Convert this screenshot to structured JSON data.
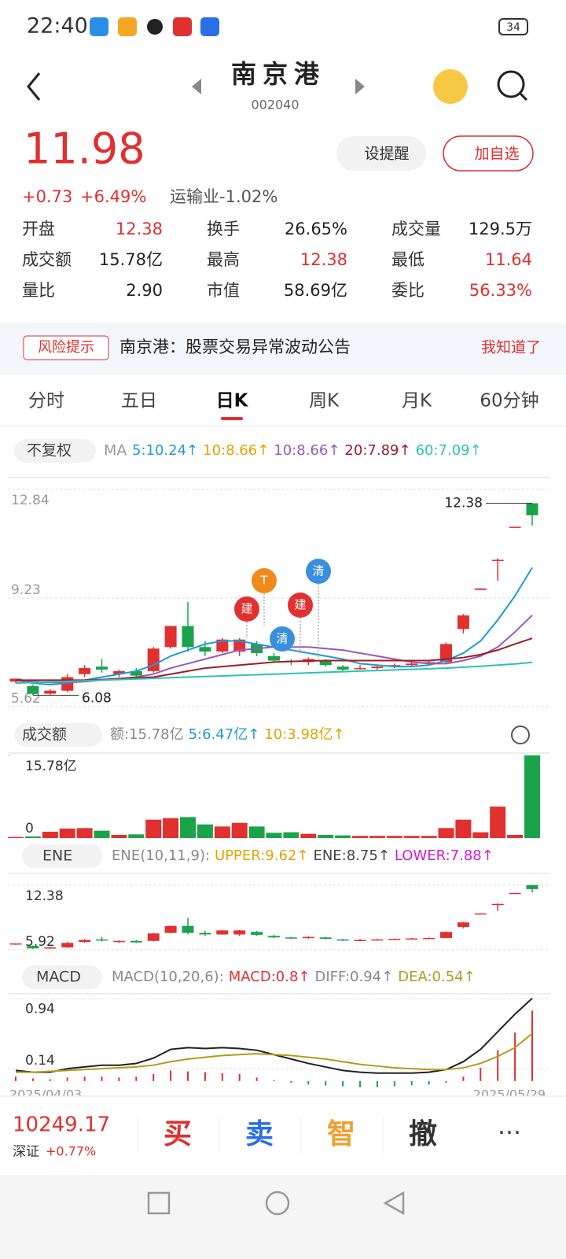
{
  "status": {
    "time": "22:40",
    "battery": "34"
  },
  "header": {
    "title": "南京港",
    "code": "002040"
  },
  "quote": {
    "price": "11.98",
    "change": "+0.73",
    "pct": "+6.49%",
    "sector": "运输业-1.02%",
    "alert": "设提醒",
    "add": "加自选"
  },
  "stats": [
    {
      "label": "开盘",
      "value": "12.38",
      "color": "#e0302f"
    },
    {
      "label": "换手",
      "value": "26.65%",
      "color": "#222"
    },
    {
      "label": "成交量",
      "value": "129.5万",
      "color": "#222"
    },
    {
      "label": "成交额",
      "value": "15.78亿",
      "color": "#222"
    },
    {
      "label": "最高",
      "value": "12.38",
      "color": "#e0302f"
    },
    {
      "label": "最低",
      "value": "11.64",
      "color": "#e0302f"
    },
    {
      "label": "量比",
      "value": "2.90",
      "color": "#222"
    },
    {
      "label": "市值",
      "value": "58.69亿",
      "color": "#222"
    },
    {
      "label": "委比",
      "value": "56.33%",
      "color": "#e0302f"
    }
  ],
  "notice": {
    "tag": "风险提示",
    "text": "南京港：股票交易异常波动公告",
    "action": "我知道了"
  },
  "tabs": [
    "分时",
    "五日",
    "日K",
    "周K",
    "月K",
    "60分钟"
  ],
  "chart_data": [
    {
      "type": "candlestick",
      "mode": "不复权",
      "legend_title": "MA",
      "open": [
        6.45,
        6.3,
        6.05,
        6.15,
        6.7,
        6.95,
        6.7,
        6.8,
        6.8,
        7.6,
        8.3,
        7.6,
        7.45,
        7.45,
        7.7,
        7.3,
        7.15,
        7.1,
        7.15,
        6.95,
        6.9,
        6.9,
        6.95,
        7.0,
        7.05,
        7.1,
        8.2,
        9.5,
        10.5,
        11.6,
        12.38
      ],
      "high": [
        6.55,
        6.35,
        6.2,
        6.7,
        7.0,
        7.2,
        6.85,
        6.9,
        7.6,
        8.3,
        9.1,
        7.8,
        7.9,
        7.9,
        7.8,
        7.4,
        7.2,
        7.25,
        7.2,
        7.0,
        7.0,
        7.0,
        7.05,
        7.1,
        7.15,
        7.75,
        8.7,
        9.55,
        10.55,
        11.6,
        12.38
      ],
      "low": [
        6.4,
        6.0,
        6.0,
        6.1,
        6.6,
        6.75,
        6.6,
        6.6,
        6.75,
        7.55,
        7.45,
        7.3,
        7.4,
        7.3,
        7.3,
        7.1,
        7.0,
        7.0,
        6.95,
        6.8,
        6.85,
        6.85,
        6.9,
        6.95,
        7.0,
        7.05,
        8.05,
        9.5,
        9.8,
        11.6,
        11.64
      ],
      "close": [
        6.55,
        6.05,
        6.15,
        6.6,
        6.9,
        6.85,
        6.8,
        6.65,
        7.55,
        8.3,
        7.6,
        7.45,
        7.85,
        7.85,
        7.4,
        7.15,
        7.1,
        7.2,
        7.0,
        6.85,
        6.9,
        6.95,
        7.0,
        7.05,
        7.1,
        7.7,
        8.65,
        9.55,
        10.5,
        11.6,
        11.98
      ],
      "series": [
        {
          "name": "5:10.24↑",
          "color": "#1e9bd7",
          "values": [
            6.5,
            6.4,
            6.35,
            6.4,
            6.5,
            6.6,
            6.7,
            6.8,
            7.0,
            7.3,
            7.5,
            7.7,
            7.8,
            7.8,
            7.7,
            7.6,
            7.5,
            7.4,
            7.3,
            7.2,
            7.05,
            7.0,
            6.95,
            6.95,
            7.0,
            7.15,
            7.4,
            7.8,
            8.5,
            9.3,
            10.24
          ]
        },
        {
          "name": "10:8.66↑",
          "color": "#e2a400",
          "values": null
        },
        {
          "name": "10:8.66↑",
          "color": "#9b59b6",
          "values": [
            6.5,
            6.45,
            6.42,
            6.42,
            6.45,
            6.5,
            6.55,
            6.6,
            6.7,
            6.9,
            7.05,
            7.2,
            7.35,
            7.5,
            7.55,
            7.6,
            7.6,
            7.6,
            7.55,
            7.5,
            7.4,
            7.3,
            7.2,
            7.1,
            7.05,
            7.05,
            7.15,
            7.3,
            7.6,
            8.1,
            8.66
          ]
        },
        {
          "name": "20:7.89↑",
          "color": "#a01c24",
          "values": [
            6.5,
            6.5,
            6.5,
            6.5,
            6.5,
            6.52,
            6.55,
            6.58,
            6.6,
            6.7,
            6.8,
            6.9,
            6.95,
            7.0,
            7.05,
            7.1,
            7.12,
            7.14,
            7.15,
            7.15,
            7.15,
            7.15,
            7.15,
            7.15,
            7.15,
            7.2,
            7.25,
            7.35,
            7.5,
            7.7,
            7.89
          ]
        },
        {
          "name": "60:7.09↑",
          "color": "#2cc4b4",
          "values": [
            6.4,
            6.42,
            6.44,
            6.46,
            6.48,
            6.5,
            6.52,
            6.54,
            6.56,
            6.58,
            6.6,
            6.62,
            6.64,
            6.66,
            6.68,
            6.7,
            6.72,
            6.74,
            6.76,
            6.78,
            6.8,
            6.82,
            6.84,
            6.86,
            6.88,
            6.9,
            6.93,
            6.96,
            7.0,
            7.04,
            7.09
          ]
        }
      ],
      "ylim": [
        5.62,
        12.84
      ],
      "yticks": [
        12.84,
        9.23,
        5.62
      ],
      "high_label": "12.38",
      "low_label": "6.08",
      "markers": [
        "T",
        "建",
        "清",
        "建",
        "清"
      ]
    },
    {
      "type": "bar",
      "selector": "成交额",
      "legend": [
        "额:15.78亿",
        "5:6.47亿↑",
        "10:3.98亿↑"
      ],
      "values": [
        0.2,
        0.3,
        1.2,
        1.8,
        1.9,
        1.4,
        0.6,
        0.7,
        3.5,
        3.8,
        4.0,
        2.6,
        2.2,
        2.9,
        2.2,
        1.0,
        1.1,
        0.8,
        0.6,
        0.5,
        0.4,
        0.4,
        0.4,
        0.4,
        0.4,
        1.9,
        3.5,
        1.1,
        6.0,
        0.6,
        15.78
      ],
      "ylim": [
        0,
        15.78
      ],
      "yticks": [
        {
          "value": 15.78,
          "label": "15.78亿"
        },
        0
      ]
    },
    {
      "type": "ene",
      "selector": "ENE",
      "legend": [
        "ENE(10,11,9):",
        "UPPER:9.62↑",
        "ENE:8.75↑",
        "LOWER:7.88↑"
      ],
      "ylim": [
        5.6,
        12.84
      ],
      "yticks": [
        12.38,
        5.92
      ]
    },
    {
      "type": "macd",
      "selector": "MACD",
      "legend": [
        "MACD(10,20,6):",
        "MACD:0.8↑",
        "DIFF:0.94↑",
        "DEA:0.54↑"
      ],
      "hist": [
        0.05,
        0.03,
        0.02,
        0.04,
        0.05,
        0.05,
        0.04,
        0.05,
        0.08,
        0.12,
        0.11,
        0.1,
        0.09,
        0.08,
        0.04,
        0.01,
        -0.02,
        -0.04,
        -0.05,
        -0.06,
        -0.07,
        -0.07,
        -0.06,
        -0.05,
        -0.04,
        -0.02,
        0.05,
        0.15,
        0.35,
        0.55,
        0.8
      ],
      "diff": [
        0.12,
        0.1,
        0.1,
        0.14,
        0.16,
        0.18,
        0.18,
        0.2,
        0.26,
        0.36,
        0.38,
        0.37,
        0.38,
        0.37,
        0.35,
        0.3,
        0.25,
        0.2,
        0.16,
        0.12,
        0.1,
        0.09,
        0.09,
        0.09,
        0.1,
        0.13,
        0.22,
        0.36,
        0.56,
        0.76,
        0.94
      ],
      "dea": [
        0.1,
        0.1,
        0.11,
        0.12,
        0.13,
        0.14,
        0.15,
        0.16,
        0.18,
        0.22,
        0.25,
        0.27,
        0.29,
        0.3,
        0.31,
        0.3,
        0.29,
        0.27,
        0.25,
        0.22,
        0.19,
        0.17,
        0.15,
        0.14,
        0.13,
        0.13,
        0.15,
        0.2,
        0.28,
        0.38,
        0.54
      ],
      "ylim": [
        -0.1,
        1.0
      ],
      "yticks": [
        0.94,
        0.14
      ],
      "dates": [
        "2025/04/03",
        "2025/05/29"
      ]
    }
  ],
  "footer": {
    "index": "10249.17",
    "market": "深证",
    "pct": "+0.77%",
    "buttons": [
      "买",
      "卖",
      "智",
      "撤"
    ]
  }
}
